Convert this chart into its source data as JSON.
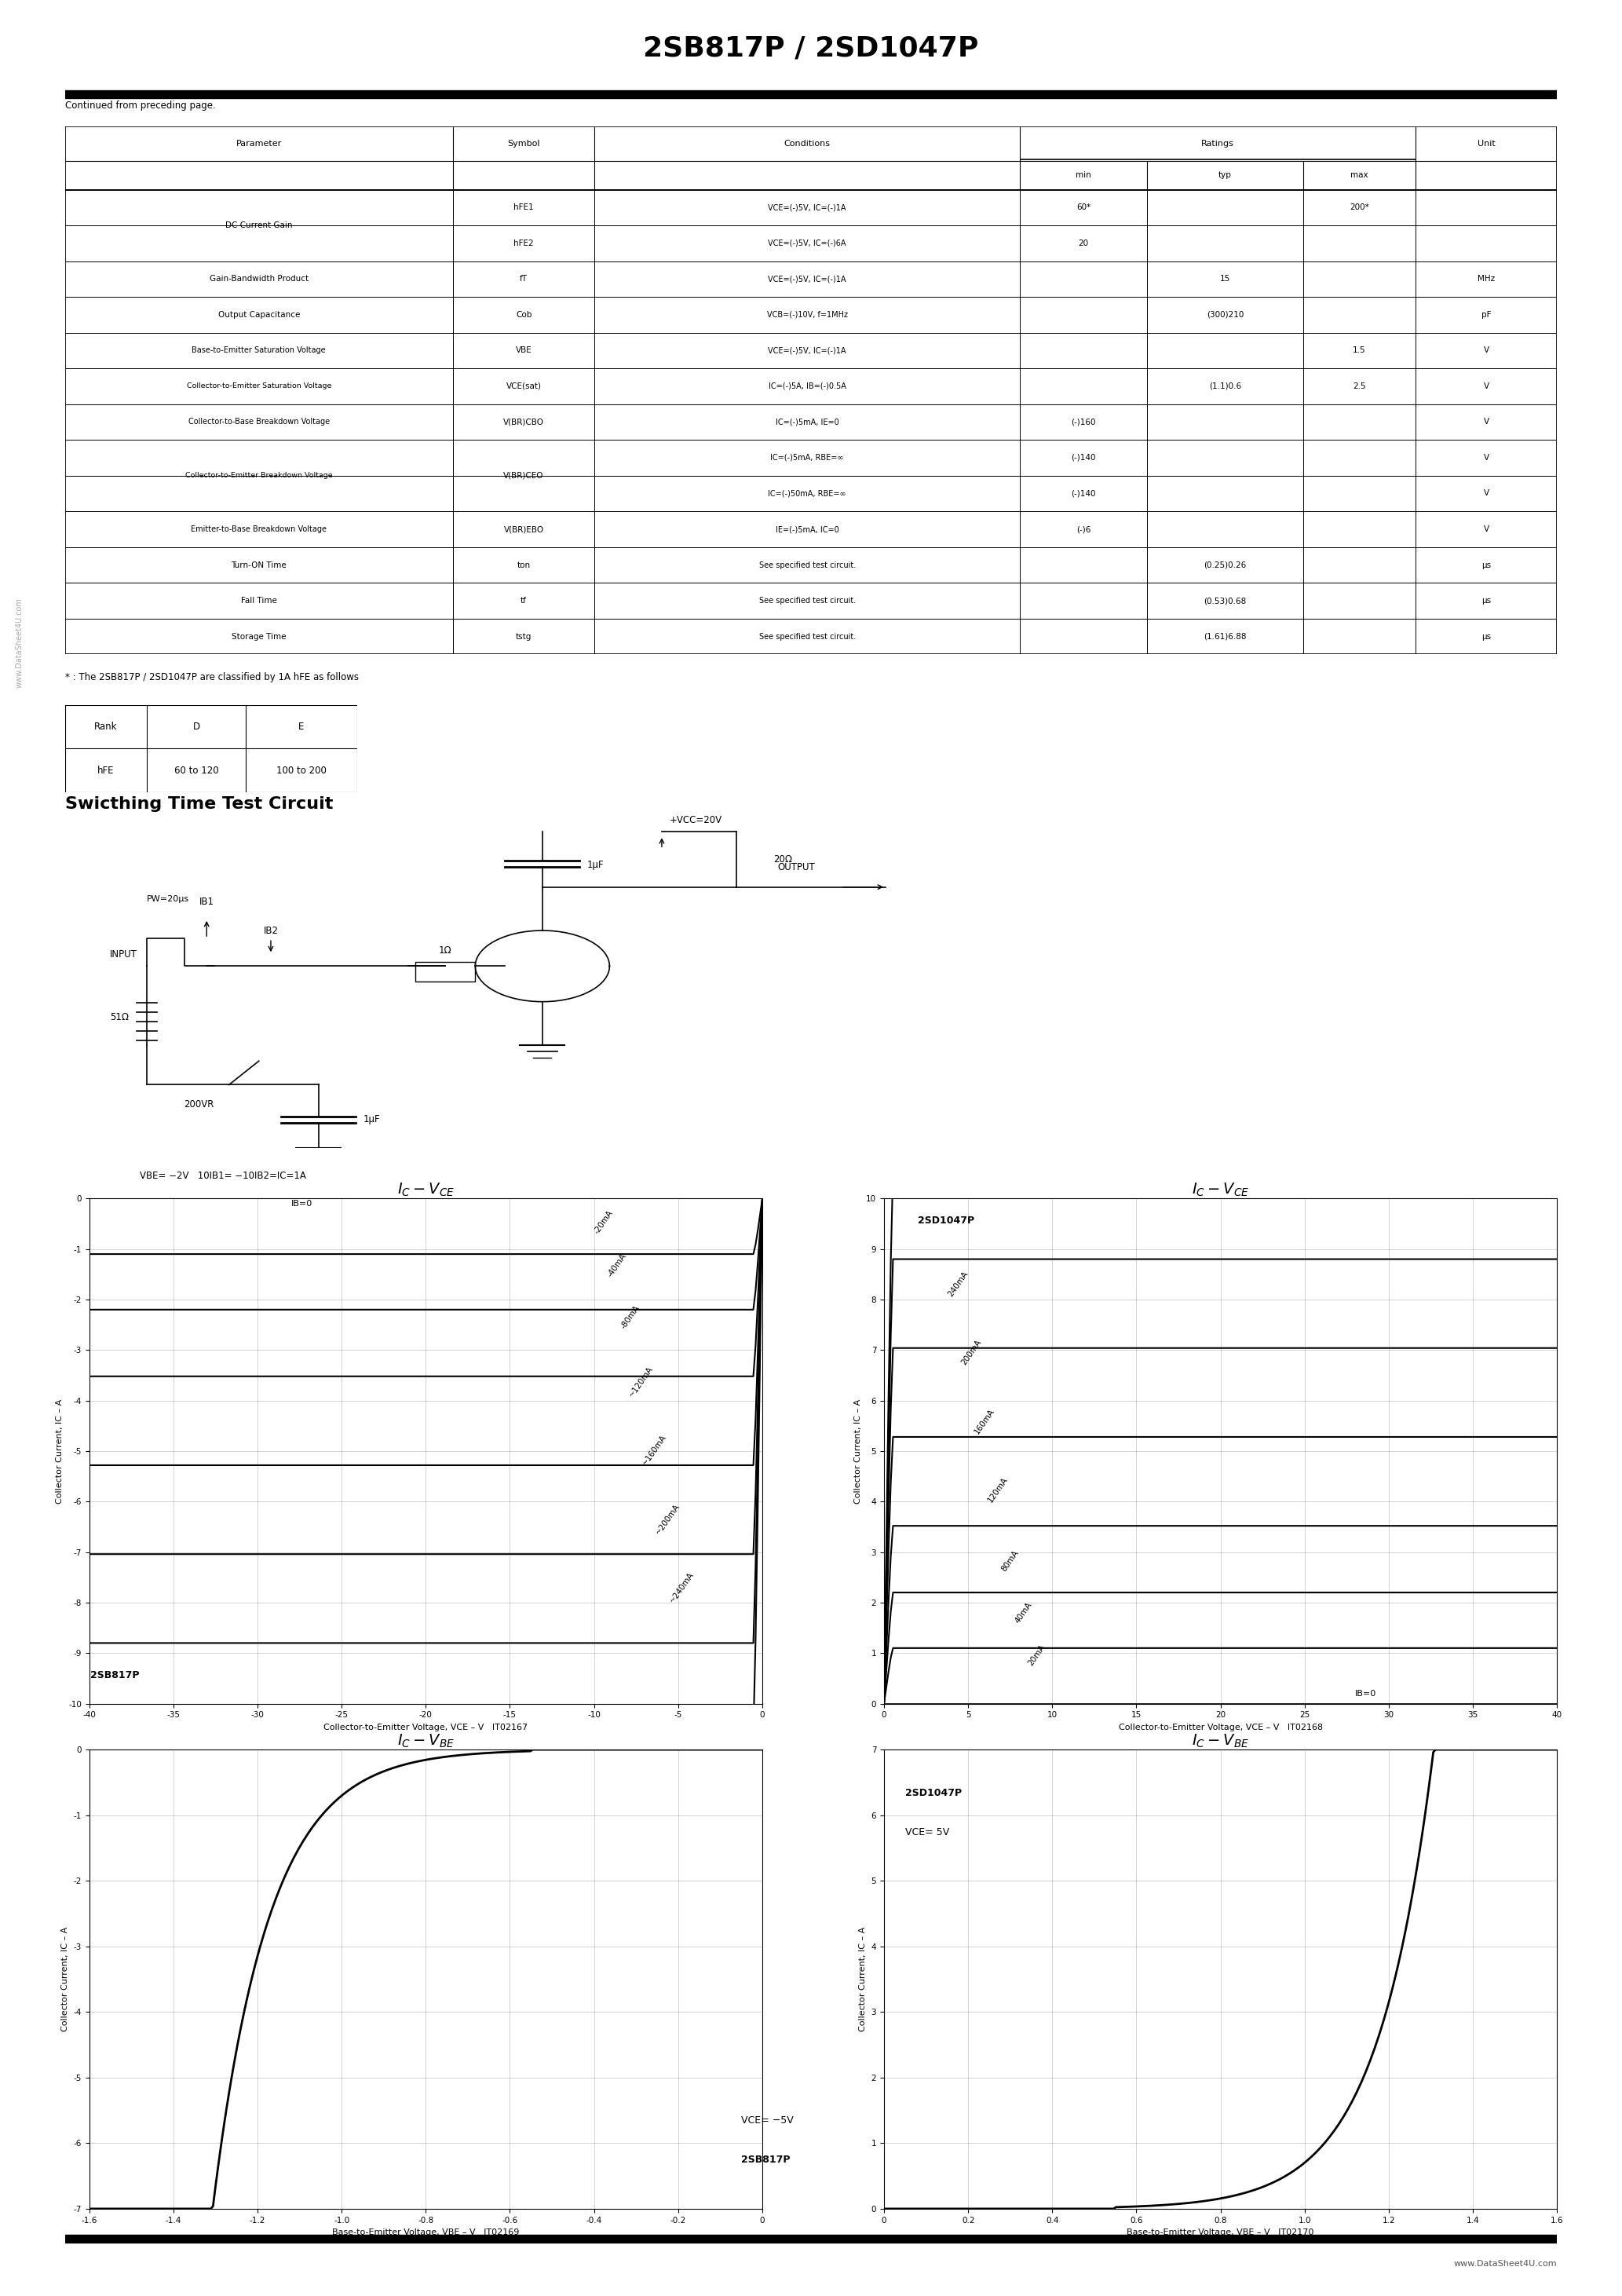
{
  "title": "2SB817P / 2SD1047P",
  "page_bg": "#ffffff",
  "continued_text": "Continued from preceding page.",
  "rank_note": "* : The 2SB817P / 2SD1047P are classified by 1A hFE as follows",
  "switch_title": "Swicthing Time Test Circuit",
  "graph1_title": "IC – VCE",
  "graph1_subtitle": "2SB817P",
  "graph1_xlabel": "Collector-to-Emitter Voltage, VCE – V",
  "graph1_ylabel": "Collector Current, IC – A",
  "graph1_code": "IT02167",
  "graph2_title": "IC – VCE",
  "graph2_subtitle": "2SD1047P",
  "graph2_xlabel": "Collector-to-Emitter Voltage, VCE – V",
  "graph2_ylabel": "Collector Current, IC – A",
  "graph2_code": "IT02168",
  "graph3_title": "IC – VBE",
  "graph3_subtitle": "2SB817P",
  "graph3_extra": "VCE= −5V",
  "graph3_xlabel": "Base-to-Emitter Voltage, VBE – V",
  "graph3_ylabel": "Collector Current, IC – A",
  "graph3_code": "IT02169",
  "graph4_title": "IC – VBE",
  "graph4_subtitle": "2SD1047P",
  "graph4_extra": "VCE= 5V",
  "graph4_xlabel": "Base-to-Emitter Voltage, VBE – V",
  "graph4_ylabel": "Collector Current, IC – A",
  "graph4_code": "IT02170",
  "watermark": "www.DataSheet4U.com"
}
